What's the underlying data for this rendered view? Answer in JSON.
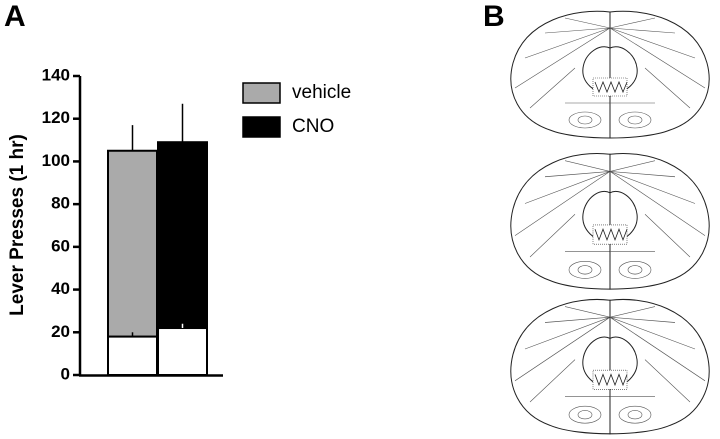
{
  "panel_a_label": "A",
  "panel_b_label": "B",
  "chart_data": {
    "type": "stacked-bar",
    "y_label": "Lever Presses (1 hr)",
    "categories": [
      null,
      null
    ],
    "series": [
      {
        "color": "#ffffff",
        "values": [
          18,
          22
        ],
        "errors": [
          2,
          2
        ]
      },
      {
        "name": "vehicle",
        "color": "#aaaaaa",
        "values": [
          87,
          null
        ],
        "errors": [
          12,
          null
        ]
      },
      {
        "name": "CNO",
        "color": "#000000",
        "values": [
          null,
          87
        ],
        "errors": [
          null,
          18
        ]
      }
    ],
    "ylim": [
      0,
      140
    ],
    "yticks": [
      0,
      20,
      40,
      60,
      80,
      100,
      120,
      140
    ]
  }
}
